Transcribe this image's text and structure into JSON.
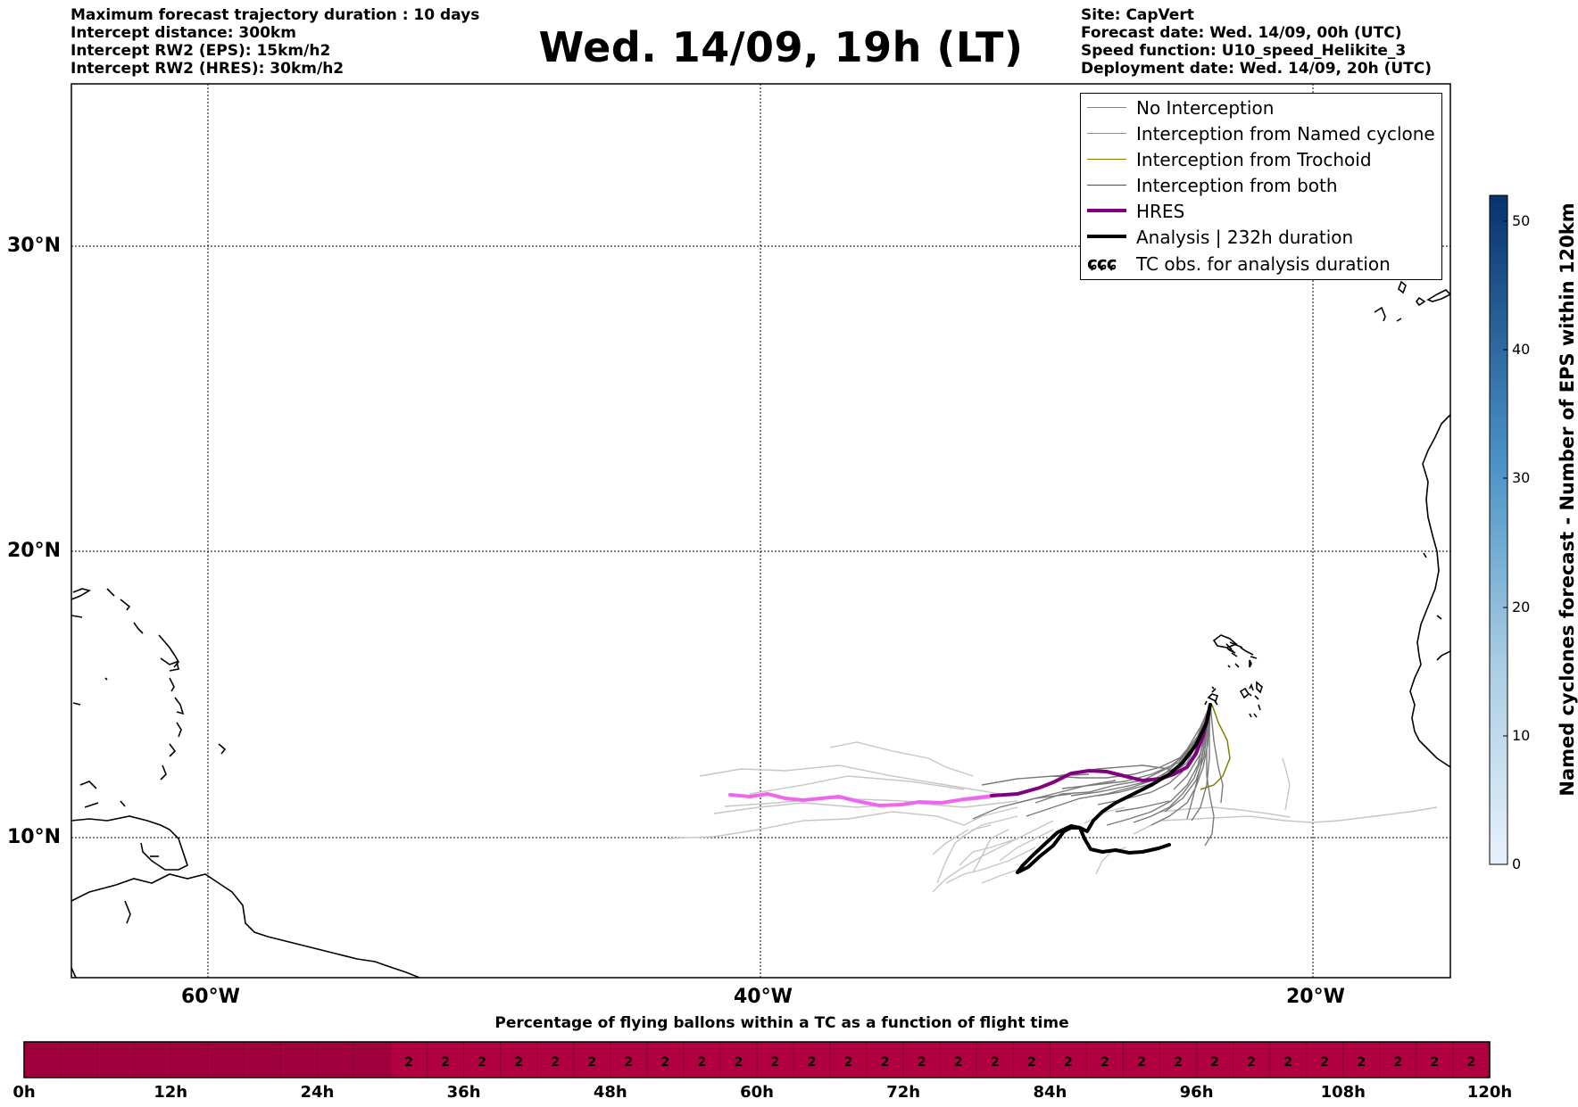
{
  "header": {
    "left": [
      "Maximum forecast trajectory duration : 10 days",
      "Intercept distance: 300km",
      "Intercept RW2 (EPS):  15km/h2",
      "Intercept RW2 (HRES): 30km/h2"
    ],
    "right": [
      "Site: CapVert",
      "Forecast date: Wed. 14/09, 00h (UTC)",
      "Speed function: U10_speed_Helikite_3",
      "Deployment date: Wed. 14/09, 20h (UTC)"
    ],
    "title": "Wed. 14/09, 19h (LT)"
  },
  "map": {
    "lat_labels": [
      "30°N",
      "20°N",
      "10°N"
    ],
    "lon_labels": [
      "60°W",
      "40°W",
      "20°W"
    ],
    "grid": true,
    "colors": {
      "no_interception": "#808080",
      "eps_light": "#c8c8c8",
      "named_cyclone": "#ff6633",
      "trochoid": "#808000",
      "both": "#008000",
      "hres": "#800080",
      "hres_light": "#ee66ee",
      "analysis": "#000000"
    }
  },
  "legend": {
    "items": [
      {
        "label": "No Interception",
        "color": "#808080",
        "width": 1.5
      },
      {
        "label": "Interception from Named cyclone",
        "color": "#ff6633",
        "width": 1.5
      },
      {
        "label": "Interception from Trochoid",
        "color": "#808000",
        "width": 1.5
      },
      {
        "label": "Interception from both",
        "color": "#008000",
        "width": 1.5
      },
      {
        "label": "HRES",
        "color": "#800080",
        "width": 4
      },
      {
        "label": "Analysis | 232h duration",
        "color": "#000000",
        "width": 4
      }
    ],
    "tc_obs_label": "TC obs. for analysis duration",
    "tc_obs_symbol": "ɕɕɕ"
  },
  "colorbar": {
    "label": "Named cyclones forecast - Number of EPS within 120km",
    "ticks": [
      "0",
      "10",
      "20",
      "30",
      "40",
      "50"
    ],
    "min": 0,
    "max": 52,
    "color_low": "#e6f0fa",
    "color_high": "#08306b"
  },
  "strip": {
    "title": "Percentage of flying ballons within a TC as a function of flight time",
    "ticks": [
      "0h",
      "12h",
      "24h",
      "36h",
      "48h",
      "60h",
      "72h",
      "84h",
      "96h",
      "108h",
      "120h"
    ],
    "value": "2",
    "value_start_hour": 30,
    "color_zero": "#a0003c",
    "color_value": "#b0003f"
  }
}
